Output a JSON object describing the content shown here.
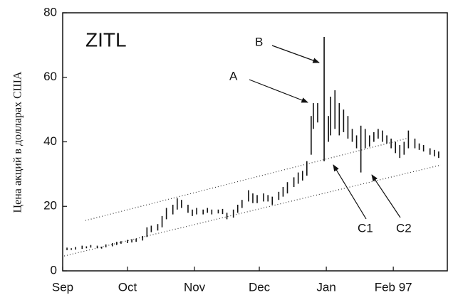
{
  "chart_data": {
    "type": "range-bar",
    "title": "ZITL",
    "y_label": "Цена акций в долларах США",
    "xlim": [
      0,
      178
    ],
    "xticks": [
      {
        "value": 0,
        "label": "Sep"
      },
      {
        "value": 30,
        "label": "Oct"
      },
      {
        "value": 61,
        "label": "Nov"
      },
      {
        "value": 91,
        "label": "Dec"
      },
      {
        "value": 122,
        "label": "Jan"
      },
      {
        "value": 153,
        "label": "Feb 97"
      }
    ],
    "ylim": [
      0,
      80
    ],
    "yticks": [
      0,
      20,
      40,
      60,
      80
    ],
    "color": "#111111",
    "x": [
      2,
      4,
      6,
      9,
      11,
      13,
      16,
      18,
      20,
      23,
      25,
      27,
      30,
      32,
      34,
      37,
      39,
      41,
      44,
      46,
      48,
      51,
      53,
      55,
      58,
      60,
      62,
      65,
      67,
      69,
      72,
      74,
      76,
      79,
      81,
      83,
      86,
      88,
      90,
      93,
      95,
      97,
      100,
      102,
      104,
      107,
      109,
      111,
      113,
      115,
      116,
      118,
      121,
      123,
      124,
      126,
      128,
      130,
      132,
      134,
      136,
      138,
      140,
      142,
      144,
      146,
      148,
      150,
      152,
      154,
      156,
      158,
      160,
      163,
      165,
      167,
      170,
      172,
      174
    ],
    "high": [
      7.2,
      7.0,
      7.4,
      7.8,
      7.6,
      8.0,
      7.8,
      7.5,
      8.2,
      8.6,
      9.0,
      9.2,
      9.6,
      9.8,
      10.0,
      10.8,
      13.5,
      14.0,
      14.5,
      17.0,
      19.5,
      20.5,
      22.5,
      22.0,
      20.5,
      19.0,
      19.5,
      19.0,
      19.5,
      19.0,
      19.0,
      19.2,
      18.0,
      19.0,
      20.5,
      22.0,
      25.0,
      24.0,
      23.5,
      24.0,
      23.5,
      23.0,
      24.5,
      26.0,
      27.5,
      29.0,
      30.5,
      31.0,
      34.0,
      48.0,
      52.0,
      52.0,
      72.5,
      48.0,
      54.0,
      56.0,
      52.0,
      50.0,
      48.0,
      44.0,
      42.0,
      45.0,
      44.0,
      42.0,
      43.0,
      44.0,
      43.5,
      42.0,
      41.0,
      40.0,
      39.0,
      40.0,
      43.5,
      41.0,
      39.5,
      39.0,
      38.0,
      37.5,
      37.0
    ],
    "low": [
      6.4,
      6.5,
      6.6,
      6.8,
      7.0,
      7.2,
      7.0,
      6.9,
      7.3,
      7.6,
      8.0,
      8.4,
      8.6,
      8.8,
      9.0,
      9.4,
      10.5,
      12.0,
      12.5,
      13.5,
      16.0,
      17.5,
      19.0,
      19.5,
      18.0,
      17.0,
      17.5,
      17.5,
      18.0,
      17.5,
      17.8,
      17.6,
      16.0,
      16.5,
      18.0,
      19.5,
      21.5,
      21.0,
      21.0,
      21.5,
      21.5,
      20.5,
      22.0,
      23.0,
      24.0,
      26.0,
      27.0,
      28.0,
      29.5,
      36.0,
      44.0,
      46.0,
      34.0,
      40.0,
      42.0,
      44.0,
      42.0,
      43.0,
      41.0,
      40.0,
      38.0,
      30.5,
      38.0,
      38.5,
      40.0,
      41.0,
      40.0,
      39.5,
      38.0,
      36.5,
      35.0,
      36.0,
      38.0,
      38.0,
      37.5,
      37.0,
      36.0,
      35.5,
      35.0
    ],
    "trendlines": [
      {
        "x": [
          10.5,
          159
        ],
        "y": [
          15.6,
          41
        ]
      },
      {
        "x": [
          0.7,
          175
        ],
        "y": [
          4.6,
          32.8
        ]
      }
    ],
    "annotations": [
      "A",
      "B",
      "C1",
      "C2"
    ]
  }
}
